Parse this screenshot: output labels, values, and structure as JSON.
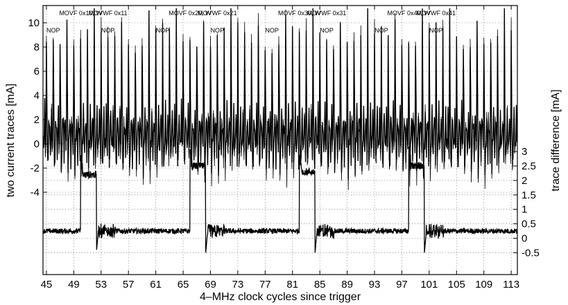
{
  "chart_data": {
    "type": "line",
    "xlabel": "4–MHz clock cycles since trigger",
    "ylabel_left": "two current traces [mA]",
    "ylabel_right": "trace difference [mA]",
    "xlim": [
      44.5,
      113.9
    ],
    "x_ticks": [
      45,
      49,
      53,
      57,
      61,
      65,
      69,
      73,
      77,
      81,
      85,
      89,
      93,
      97,
      101,
      105,
      109,
      113
    ],
    "y_left_ticks": [
      10,
      8,
      6,
      4,
      2,
      0,
      -2,
      -4
    ],
    "y_right_ticks": [
      3,
      2.5,
      2,
      1.5,
      1,
      0.5,
      0,
      -0.5
    ],
    "grid": true,
    "instructions": [
      {
        "label": "MOVF 0x10, W",
        "x": 50.0,
        "row": "upper"
      },
      {
        "label": "NOP",
        "x": 46.0,
        "row": "lower"
      },
      {
        "label": "MOVWF 0x11",
        "x": 54.0,
        "row": "upper"
      },
      {
        "label": "NOP",
        "x": 54.0,
        "row": "lower"
      },
      {
        "label": "MOVF 0x20, W",
        "x": 66.0,
        "row": "upper"
      },
      {
        "label": "NOP",
        "x": 62.0,
        "row": "lower"
      },
      {
        "label": "MOVWF 0x21",
        "x": 70.0,
        "row": "upper"
      },
      {
        "label": "NOP",
        "x": 70.0,
        "row": "lower"
      },
      {
        "label": "MOVF 0x30, W",
        "x": 82.0,
        "row": "upper"
      },
      {
        "label": "NOP",
        "x": 78.0,
        "row": "lower"
      },
      {
        "label": "MOVWF 0x31",
        "x": 86.0,
        "row": "upper"
      },
      {
        "label": "NOP",
        "x": 86.0,
        "row": "lower"
      },
      {
        "label": "MOVF 0x40, W",
        "x": 98.0,
        "row": "upper"
      },
      {
        "label": "NOP",
        "x": 94.0,
        "row": "lower"
      },
      {
        "label": "MOVWF 0x41",
        "x": 102.0,
        "row": "upper"
      },
      {
        "label": "NOP",
        "x": 102.0,
        "row": "lower"
      }
    ],
    "upper_panel": {
      "ylim": [
        -5.0,
        11.2
      ],
      "series": [
        {
          "samples_per_cycle": 6,
          "x_start": 44.5,
          "peak_mA": 10.8,
          "baseline_mA": 0.8
        },
        {
          "samples_per_cycle": 6,
          "x_start": 44.5,
          "peak_mA": 10.5,
          "baseline_mA": 0.7
        }
      ]
    },
    "lower_panel": {
      "ylim": [
        -0.9,
        3.4
      ],
      "series": [
        {
          "baseline_mA": 0.25,
          "pulses": [
            {
              "x_start": 50.0,
              "x_end": 52.3,
              "peak_mA": 2.9,
              "plateau_mA": 2.2
            },
            {
              "x_start": 66.0,
              "x_end": 68.3,
              "peak_mA": 3.1,
              "plateau_mA": 2.5
            },
            {
              "x_start": 82.0,
              "x_end": 84.3,
              "peak_mA": 2.9,
              "plateau_mA": 2.3
            },
            {
              "x_start": 98.0,
              "x_end": 100.3,
              "peak_mA": 3.2,
              "plateau_mA": 2.5
            }
          ]
        }
      ]
    }
  }
}
